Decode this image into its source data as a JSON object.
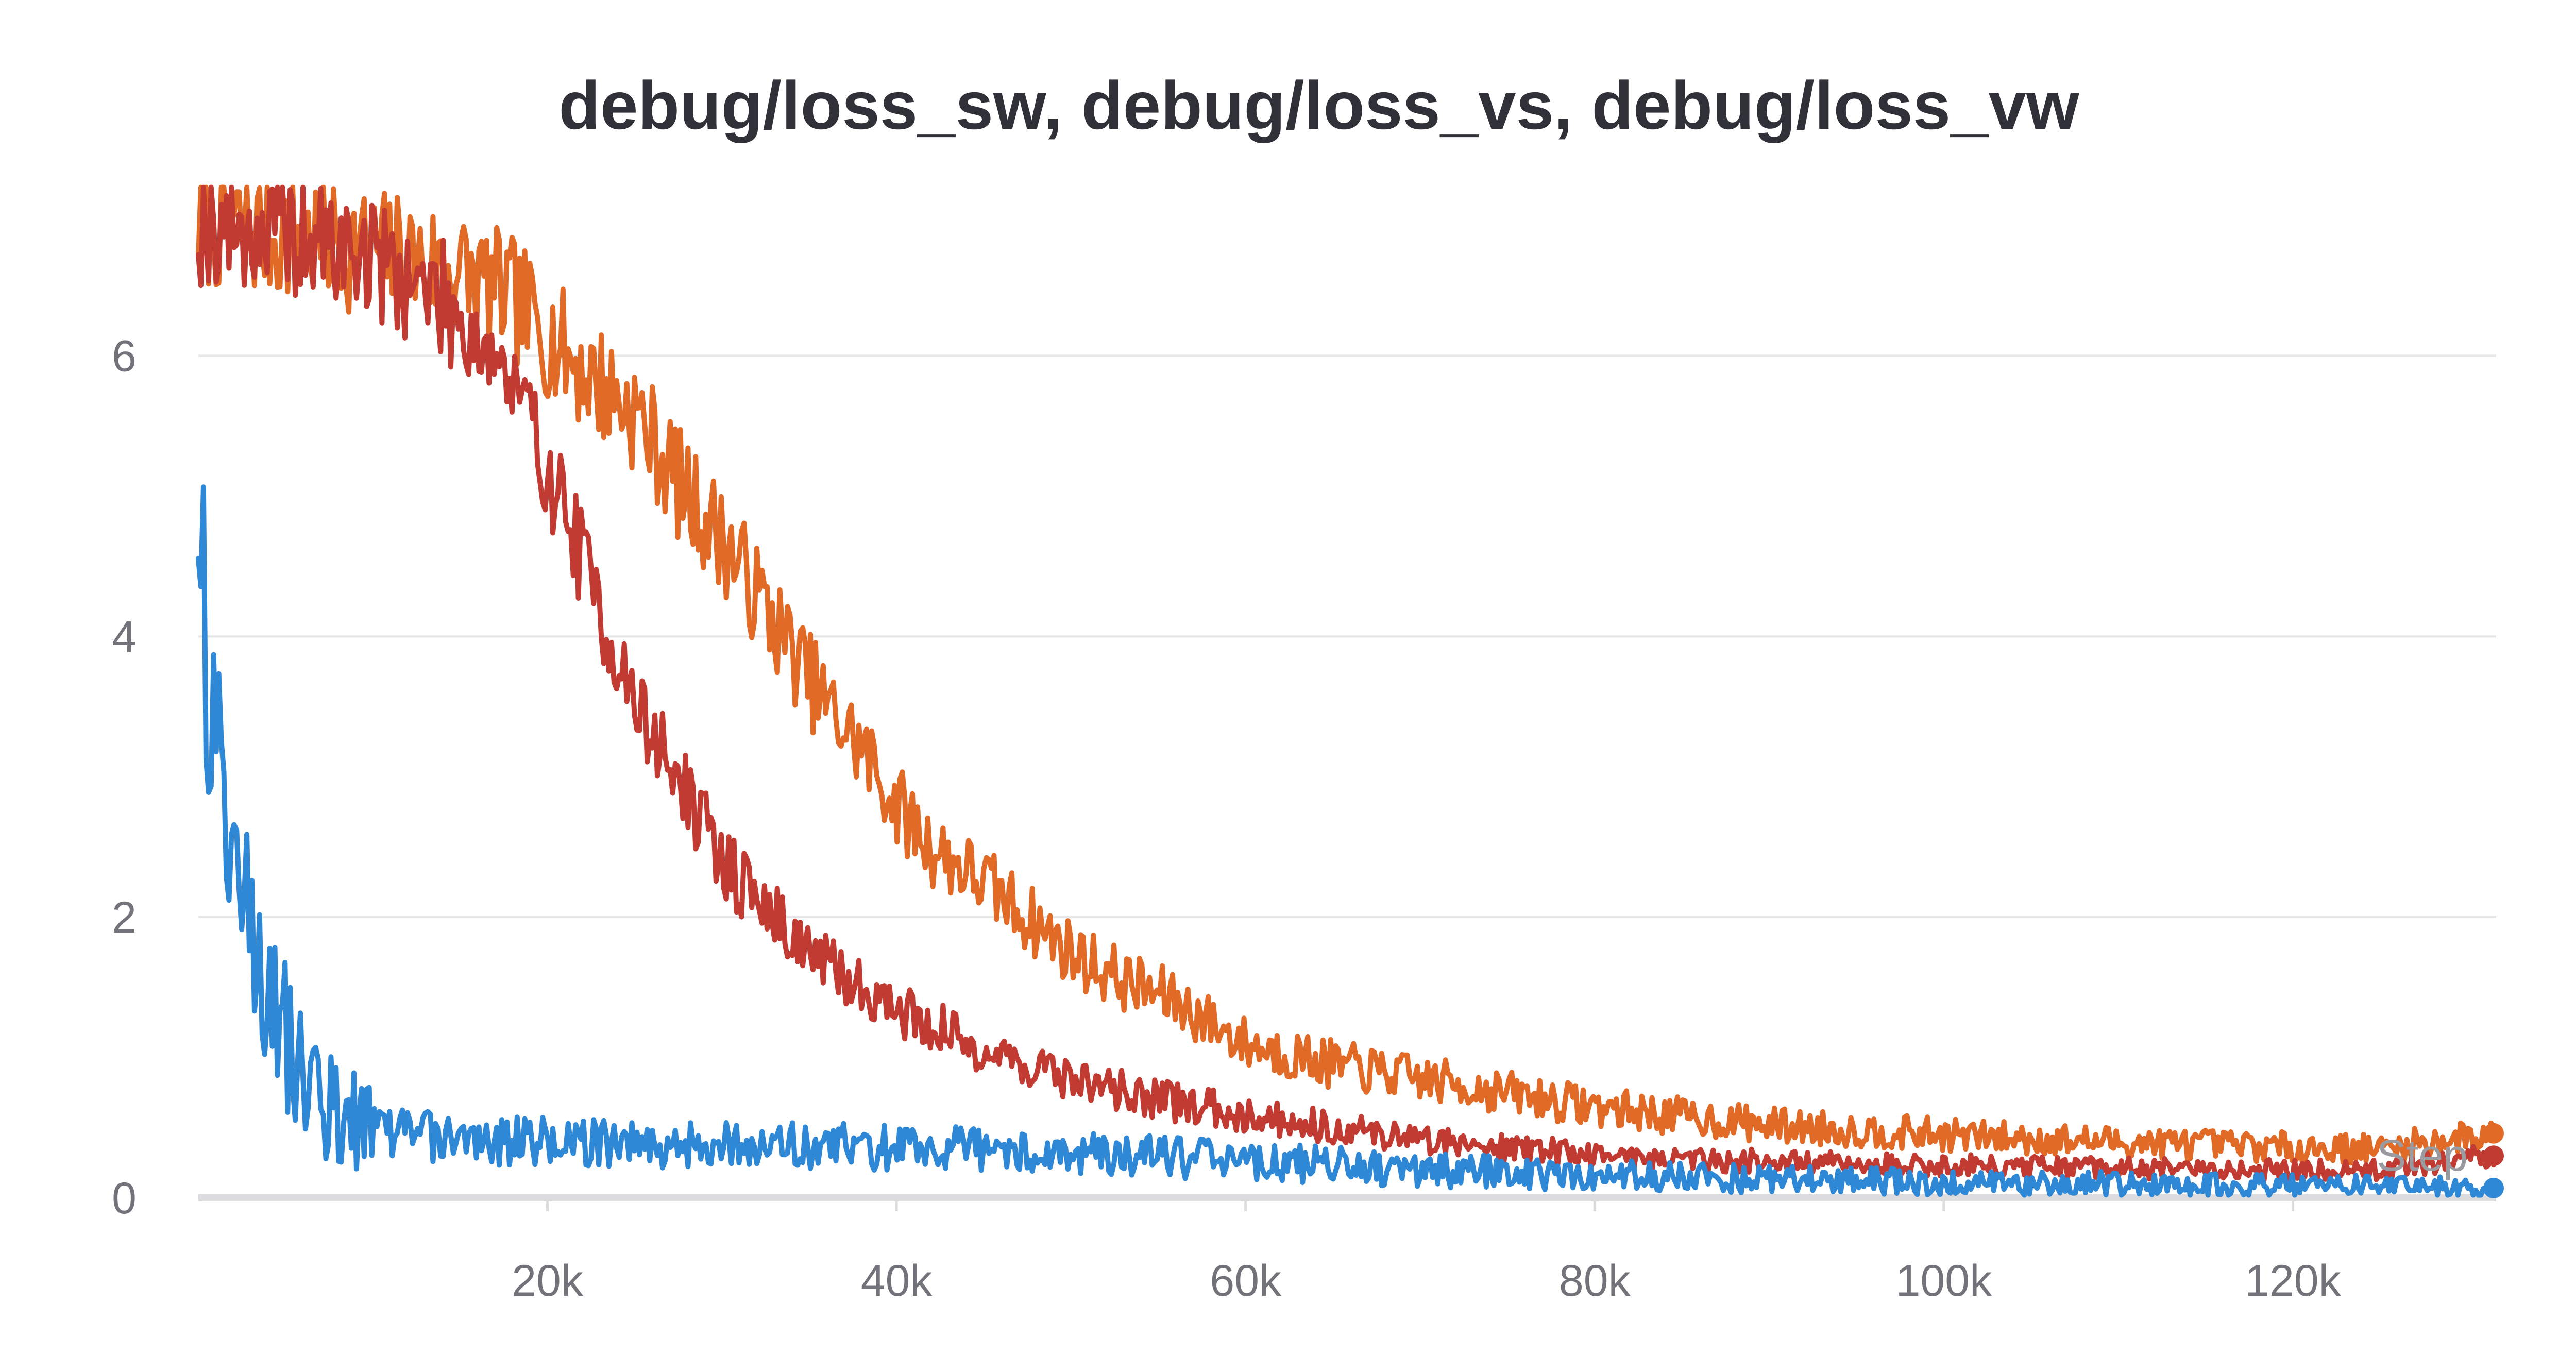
{
  "chart_data": {
    "type": "line",
    "title": "debug/loss_sw, debug/loss_vs, debug/loss_vw",
    "xlabel": "Step",
    "ylabel": "",
    "xlim": [
      0,
      131500
    ],
    "ylim": [
      0,
      7.25
    ],
    "x_ticks": [
      20000,
      40000,
      60000,
      80000,
      100000,
      120000
    ],
    "x_tick_labels": [
      "20k",
      "40k",
      "60k",
      "80k",
      "100k",
      "120k"
    ],
    "y_ticks": [
      0,
      2,
      4,
      6
    ],
    "y_tick_labels": [
      "0",
      "2",
      "4",
      "6"
    ],
    "grid": "horizontal",
    "legend": "none",
    "series": [
      {
        "color": "#e16a26",
        "x": [
          0,
          5000,
          10000,
          15000,
          18000,
          22000,
          25000,
          28000,
          30000,
          33000,
          36000,
          38000,
          40000,
          42000,
          45000,
          48000,
          50000,
          53000,
          56000,
          60000,
          65000,
          70000,
          75000,
          80000,
          85000,
          90000,
          95000,
          100000,
          105000,
          110000,
          115000,
          120000,
          125000,
          131500
        ],
        "values": [
          6.95,
          6.85,
          6.75,
          6.6,
          6.4,
          5.9,
          5.6,
          5.0,
          4.7,
          4.1,
          3.5,
          3.2,
          2.8,
          2.5,
          2.25,
          1.95,
          1.75,
          1.55,
          1.4,
          1.1,
          0.95,
          0.85,
          0.75,
          0.65,
          0.58,
          0.52,
          0.48,
          0.45,
          0.42,
          0.4,
          0.38,
          0.36,
          0.35,
          0.46
        ]
      },
      {
        "color": "#c23b33",
        "x": [
          0,
          5000,
          10000,
          14000,
          17000,
          19000,
          21000,
          23000,
          25000,
          27000,
          30000,
          33000,
          36000,
          40000,
          45000,
          50000,
          55000,
          60000,
          65000,
          70000,
          75000,
          80000,
          85000,
          90000,
          95000,
          100000,
          105000,
          110000,
          115000,
          120000,
          125000,
          131500
        ],
        "values": [
          6.95,
          6.85,
          6.7,
          6.4,
          6.0,
          5.5,
          4.9,
          4.2,
          3.5,
          3.1,
          2.4,
          2.0,
          1.65,
          1.35,
          1.05,
          0.85,
          0.7,
          0.6,
          0.5,
          0.42,
          0.36,
          0.31,
          0.28,
          0.26,
          0.24,
          0.23,
          0.22,
          0.21,
          0.2,
          0.2,
          0.2,
          0.3
        ]
      },
      {
        "color": "#2e88d6",
        "x": [
          0,
          500,
          1000,
          1500,
          2500,
          3500,
          4500,
          5500,
          6500,
          8000,
          10000,
          14000,
          20000,
          30000,
          40000,
          50000,
          60000,
          70000,
          80000,
          90000,
          100000,
          110000,
          120000,
          131500
        ],
        "values": [
          5.3,
          3.9,
          3.1,
          2.6,
          2.2,
          1.7,
          1.3,
          1.0,
          0.8,
          0.6,
          0.5,
          0.42,
          0.4,
          0.38,
          0.36,
          0.32,
          0.26,
          0.2,
          0.16,
          0.13,
          0.11,
          0.1,
          0.09,
          0.07
        ]
      }
    ]
  }
}
